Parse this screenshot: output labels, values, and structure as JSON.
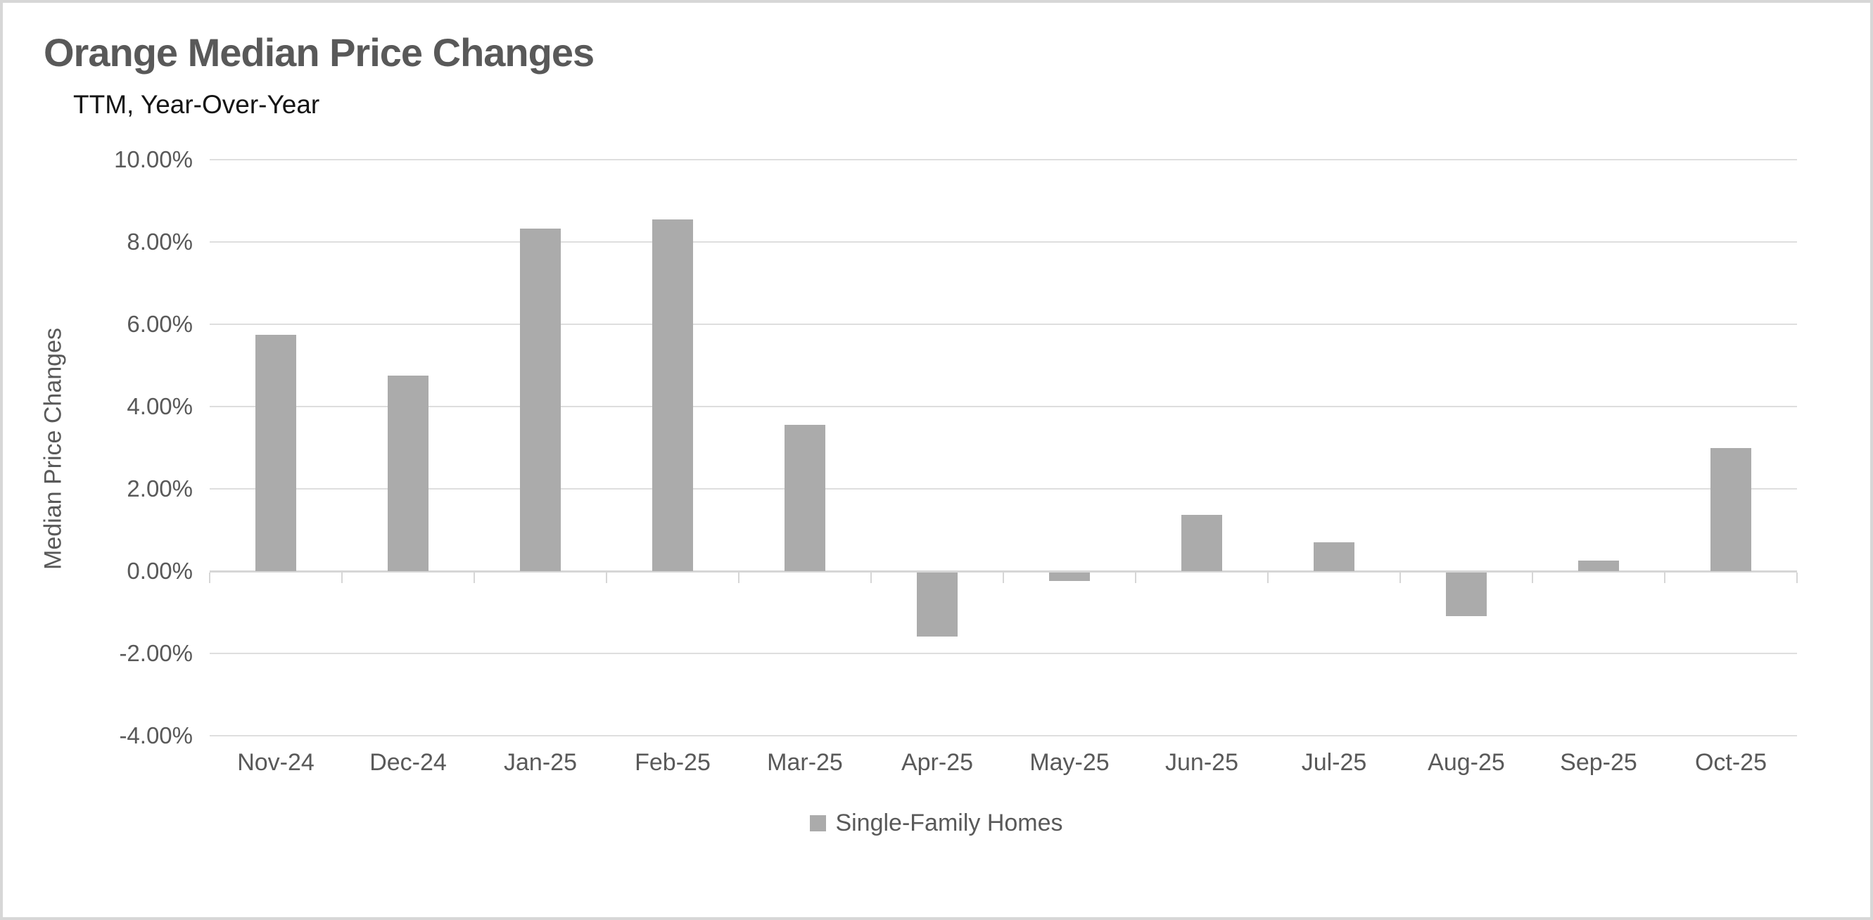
{
  "chart_data": {
    "type": "bar",
    "title": "Orange Median Price Changes",
    "subtitle": "TTM, Year-Over-Year",
    "ylabel": "Median Price Changes",
    "xlabel": "",
    "categories": [
      "Nov-24",
      "Dec-24",
      "Jan-25",
      "Feb-25",
      "Mar-25",
      "Apr-25",
      "May-25",
      "Jun-25",
      "Jul-25",
      "Aug-25",
      "Sep-25",
      "Oct-25"
    ],
    "series": [
      {
        "name": "Single-Family Homes",
        "values": [
          5.75,
          4.75,
          8.32,
          8.55,
          3.56,
          -1.56,
          -0.2,
          1.36,
          0.7,
          -1.06,
          0.25,
          3.0
        ]
      }
    ],
    "yticks": [
      {
        "value": 10,
        "label": "10.00%"
      },
      {
        "value": 8,
        "label": "8.00%"
      },
      {
        "value": 6,
        "label": "6.00%"
      },
      {
        "value": 4,
        "label": "4.00%"
      },
      {
        "value": 2,
        "label": "2.00%"
      },
      {
        "value": 0,
        "label": "0.00%"
      },
      {
        "value": -2,
        "label": "-2.00%"
      },
      {
        "value": -4,
        "label": "-4.00%"
      }
    ],
    "ylim": [
      -4,
      10
    ],
    "grid": "horizontal",
    "legend_position": "bottom",
    "bar_color": "#ababab",
    "gridline_color": "#dedede",
    "axis_line_color": "#d6d6d6",
    "text_color": "#595959",
    "title_color": "#595959",
    "subtitle_color": "#141414"
  }
}
